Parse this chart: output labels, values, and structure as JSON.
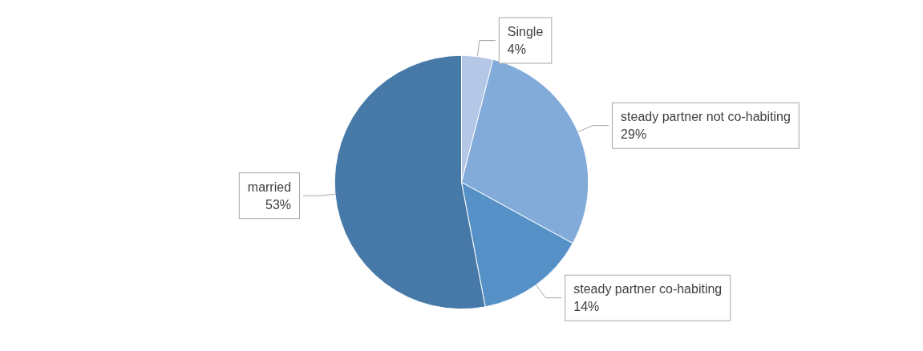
{
  "chart_data": {
    "type": "pie",
    "categories": [
      "Single",
      "steady partner not co-habiting",
      "steady partner co-habiting",
      "married"
    ],
    "values": [
      4,
      29,
      14,
      53
    ],
    "colors": [
      "#b4c7e7",
      "#82abda",
      "#5590c6",
      "#4679a8"
    ],
    "value_labels": [
      "4%",
      "29%",
      "14%",
      "53%"
    ],
    "legend": false
  }
}
